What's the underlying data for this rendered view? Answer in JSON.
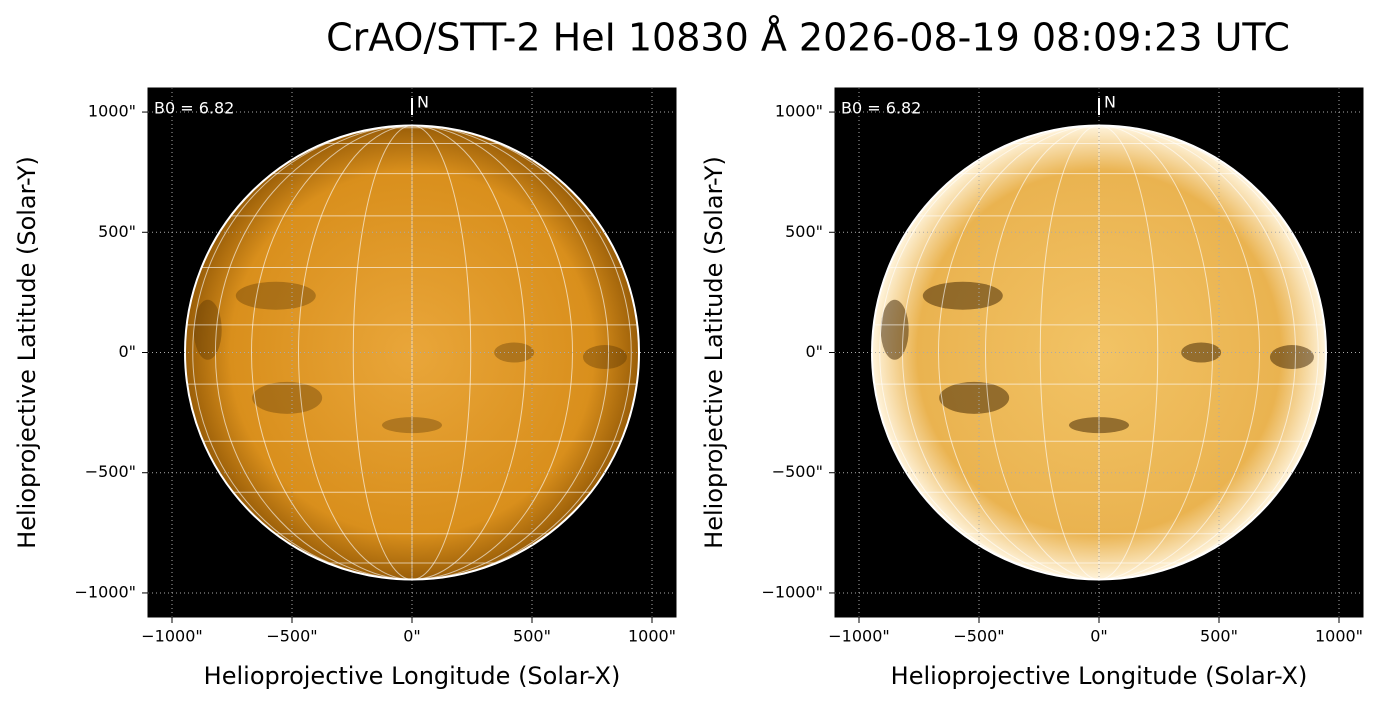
{
  "title": "CrAO/STT-2 HeI 10830 Å 2026-08-19 08:09:23 UTC",
  "chart_data": [
    {
      "type": "image",
      "annotation": "B0 = 6.82",
      "north_label": "N",
      "xlabel": "Helioprojective Longitude (Solar-X)",
      "ylabel": "Helioprojective Latitude (Solar-Y)",
      "xlim": [
        -1100,
        1100
      ],
      "ylim": [
        -1100,
        1100
      ],
      "xticks": [
        {
          "value": -1000,
          "label": "−1000\""
        },
        {
          "value": -500,
          "label": "−500\""
        },
        {
          "value": 0,
          "label": "0\""
        },
        {
          "value": 500,
          "label": "500\""
        },
        {
          "value": 1000,
          "label": "1000\""
        }
      ],
      "yticks": [
        {
          "value": -1000,
          "label": "−1000\""
        },
        {
          "value": -500,
          "label": "−500\""
        },
        {
          "value": 0,
          "label": "0\""
        },
        {
          "value": 500,
          "label": "500\""
        },
        {
          "value": 1000,
          "label": "1000\""
        }
      ],
      "grid": true
    },
    {
      "type": "image",
      "annotation": "B0 = 6.82",
      "north_label": "N",
      "xlabel": "Helioprojective Longitude (Solar-X)",
      "ylabel": "Helioprojective Latitude (Solar-Y)",
      "xlim": [
        -1100,
        1100
      ],
      "ylim": [
        -1100,
        1100
      ],
      "xticks": [
        {
          "value": -1000,
          "label": "−1000\""
        },
        {
          "value": -500,
          "label": "−500\""
        },
        {
          "value": 0,
          "label": "0\""
        },
        {
          "value": 500,
          "label": "500\""
        },
        {
          "value": 1000,
          "label": "1000\""
        }
      ],
      "yticks": [
        {
          "value": -1000,
          "label": "−1000\""
        },
        {
          "value": -500,
          "label": "−500\""
        },
        {
          "value": 0,
          "label": "0\""
        },
        {
          "value": 500,
          "label": "500\""
        },
        {
          "value": 1000,
          "label": "1000\""
        }
      ],
      "grid": true
    }
  ]
}
